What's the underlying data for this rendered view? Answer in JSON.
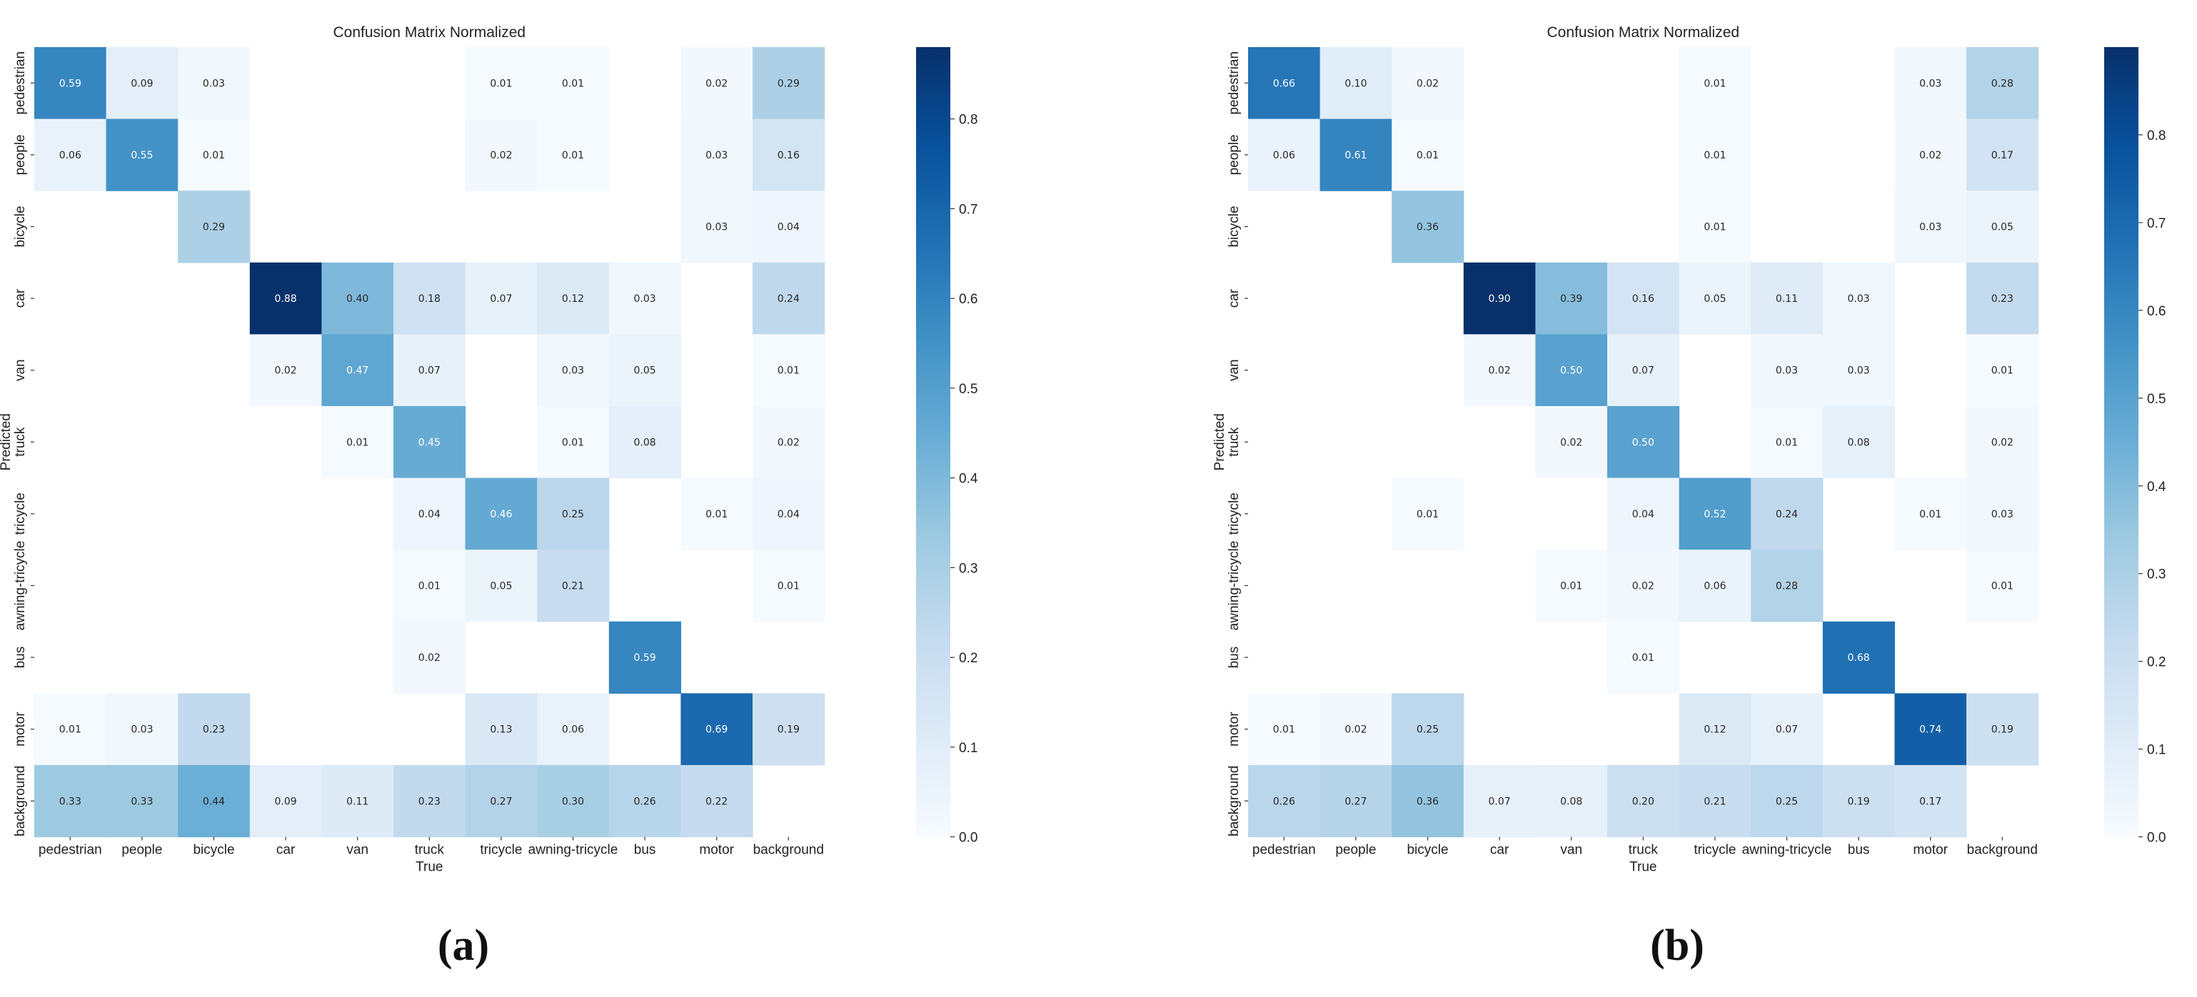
{
  "chart_data": [
    {
      "type": "heatmap",
      "panel_label": "(a)",
      "title": "Confusion Matrix Normalized",
      "xlabel": "True",
      "ylabel": "Predicted",
      "x_categories": [
        "pedestrian",
        "people",
        "bicycle",
        "car",
        "van",
        "truck",
        "tricycle",
        "awning-tricycle",
        "bus",
        "motor",
        "background"
      ],
      "y_categories": [
        "pedestrian",
        "people",
        "bicycle",
        "car",
        "van",
        "truck",
        "tricycle",
        "awning-tricycle",
        "bus",
        "motor",
        "background"
      ],
      "values": [
        [
          0.59,
          0.09,
          0.03,
          null,
          null,
          null,
          0.01,
          0.01,
          null,
          0.02,
          0.29
        ],
        [
          0.06,
          0.55,
          0.01,
          null,
          null,
          null,
          0.02,
          0.01,
          null,
          0.03,
          0.16
        ],
        [
          null,
          null,
          0.29,
          null,
          null,
          null,
          null,
          null,
          null,
          0.03,
          0.04
        ],
        [
          null,
          null,
          null,
          0.88,
          0.4,
          0.18,
          0.07,
          0.12,
          0.03,
          null,
          0.24
        ],
        [
          null,
          null,
          null,
          0.02,
          0.47,
          0.07,
          null,
          0.03,
          0.05,
          null,
          0.01
        ],
        [
          null,
          null,
          null,
          null,
          0.01,
          0.45,
          null,
          0.01,
          0.08,
          null,
          0.02
        ],
        [
          null,
          null,
          null,
          null,
          null,
          0.04,
          0.46,
          0.25,
          null,
          0.01,
          0.04
        ],
        [
          null,
          null,
          null,
          null,
          null,
          0.01,
          0.05,
          0.21,
          null,
          null,
          0.01
        ],
        [
          null,
          null,
          null,
          null,
          null,
          0.02,
          null,
          null,
          0.59,
          null,
          null
        ],
        [
          0.01,
          0.03,
          0.23,
          null,
          null,
          null,
          0.13,
          0.06,
          null,
          0.69,
          0.19
        ],
        [
          0.33,
          0.33,
          0.44,
          0.09,
          0.11,
          0.23,
          0.27,
          0.3,
          0.26,
          0.22,
          null
        ]
      ],
      "colorbar": {
        "min": 0.0,
        "max": 0.88,
        "ticks": [
          "0.0",
          "0.1",
          "0.2",
          "0.3",
          "0.4",
          "0.5",
          "0.6",
          "0.7",
          "0.8"
        ],
        "colormap": "Blues"
      }
    },
    {
      "type": "heatmap",
      "panel_label": "(b)",
      "title": "Confusion Matrix Normalized",
      "xlabel": "True",
      "ylabel": "Predicted",
      "x_categories": [
        "pedestrian",
        "people",
        "bicycle",
        "car",
        "van",
        "truck",
        "tricycle",
        "awning-tricycle",
        "bus",
        "motor",
        "background"
      ],
      "y_categories": [
        "pedestrian",
        "people",
        "bicycle",
        "car",
        "van",
        "truck",
        "tricycle",
        "awning-tricycle",
        "bus",
        "motor",
        "background"
      ],
      "values": [
        [
          0.66,
          0.1,
          0.02,
          null,
          null,
          null,
          0.01,
          null,
          null,
          0.03,
          0.28
        ],
        [
          0.06,
          0.61,
          0.01,
          null,
          null,
          null,
          0.01,
          null,
          null,
          0.02,
          0.17
        ],
        [
          null,
          null,
          0.36,
          null,
          null,
          null,
          0.01,
          null,
          null,
          0.03,
          0.05
        ],
        [
          null,
          null,
          null,
          0.9,
          0.39,
          0.16,
          0.05,
          0.11,
          0.03,
          null,
          0.23
        ],
        [
          null,
          null,
          null,
          0.02,
          0.5,
          0.07,
          null,
          0.03,
          0.03,
          null,
          0.01
        ],
        [
          null,
          null,
          null,
          null,
          0.02,
          0.5,
          null,
          0.01,
          0.08,
          null,
          0.02
        ],
        [
          null,
          null,
          0.01,
          null,
          null,
          0.04,
          0.52,
          0.24,
          null,
          0.01,
          0.03
        ],
        [
          null,
          null,
          null,
          null,
          0.01,
          0.02,
          0.06,
          0.28,
          null,
          null,
          0.01
        ],
        [
          null,
          null,
          null,
          null,
          null,
          0.01,
          null,
          null,
          0.68,
          null,
          null
        ],
        [
          0.01,
          0.02,
          0.25,
          null,
          null,
          null,
          0.12,
          0.07,
          null,
          0.74,
          0.19
        ],
        [
          0.26,
          0.27,
          0.36,
          0.07,
          0.08,
          0.2,
          0.21,
          0.25,
          0.19,
          0.17,
          null
        ]
      ],
      "colorbar": {
        "min": 0.0,
        "max": 0.9,
        "ticks": [
          "0.0",
          "0.1",
          "0.2",
          "0.3",
          "0.4",
          "0.5",
          "0.6",
          "0.7",
          "0.8"
        ],
        "colormap": "Blues"
      }
    }
  ]
}
